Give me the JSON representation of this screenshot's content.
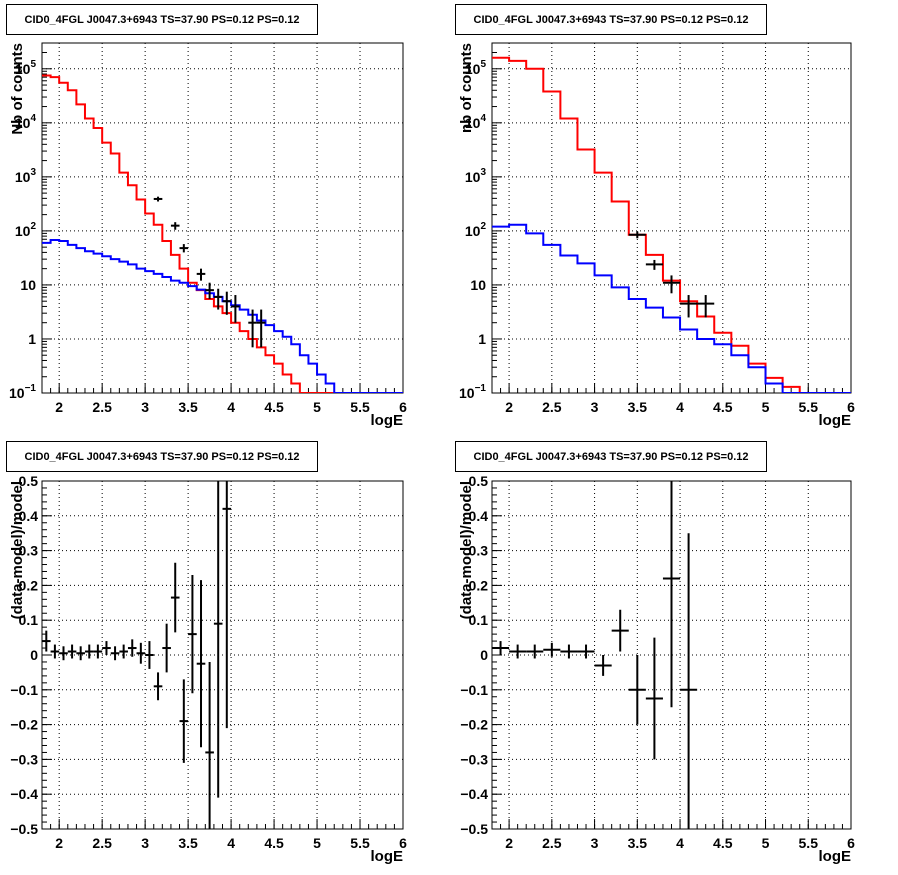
{
  "colors": {
    "red": "#ff0000",
    "blue": "#0000ff",
    "black": "#000000",
    "grid": "#000000"
  },
  "chart_data": [
    {
      "type": "line",
      "title": "CID0_4FGL J0047.3+6943 TS=37.90 PS=0.12 PS=0.12",
      "xlabel": "logE",
      "ylabel": "Nb of counts",
      "xlim": [
        1.8,
        6.0
      ],
      "ylim": [
        0.1,
        300000
      ],
      "yscale": "log",
      "xticks": [
        "2",
        "2.5",
        "3",
        "3.5",
        "4",
        "4.5",
        "5",
        "5.5",
        "6"
      ],
      "yticks": [
        "10^-1",
        "1",
        "10",
        "10^2",
        "10^3",
        "10^4",
        "10^5"
      ],
      "grid": true,
      "bin_edges": [
        1.8,
        1.9,
        2.0,
        2.1,
        2.2,
        2.3,
        2.4,
        2.5,
        2.6,
        2.7,
        2.8,
        2.9,
        3.0,
        3.1,
        3.2,
        3.3,
        3.4,
        3.5,
        3.6,
        3.7,
        3.8,
        3.9,
        4.0,
        4.1,
        4.2,
        4.3,
        4.4,
        4.5,
        4.6,
        4.7,
        4.8,
        4.9,
        5.0,
        5.1,
        5.2,
        5.3,
        5.4,
        5.5,
        5.6,
        5.7,
        5.8,
        5.9,
        6.0
      ],
      "series": [
        {
          "color": "red",
          "style": "step",
          "values": [
            75000,
            70000,
            55000,
            40000,
            22000,
            12000,
            8000,
            4300,
            2700,
            1200,
            700,
            380,
            210,
            130,
            65,
            36,
            20,
            11,
            8,
            5.5,
            4,
            3,
            2,
            1.4,
            1,
            0.7,
            0.5,
            0.35,
            0.22,
            0.15,
            0.1,
            0.1,
            0.1,
            0.1,
            0.1,
            0.1,
            0.1,
            0.1,
            0.1,
            0.1,
            0.1,
            0.1
          ]
        },
        {
          "color": "blue",
          "style": "step",
          "values": [
            60,
            68,
            65,
            55,
            48,
            42,
            38,
            34,
            30,
            27,
            24,
            20,
            18,
            16,
            14,
            12,
            11,
            9.5,
            8.2,
            7,
            6,
            5,
            4.2,
            3.5,
            2.8,
            2.2,
            1.8,
            1.4,
            1.1,
            0.8,
            0.5,
            0.35,
            0.22,
            0.15,
            0.1,
            0.1,
            0.1,
            0.1,
            0.1,
            0.1,
            0.1,
            0.1
          ]
        }
      ],
      "points": [
        {
          "x": 3.15,
          "xerr": 0.05,
          "y": 390,
          "ylo": 350,
          "yhi": 430
        },
        {
          "x": 3.35,
          "xerr": 0.05,
          "y": 125,
          "ylo": 105,
          "yhi": 145
        },
        {
          "x": 3.45,
          "xerr": 0.05,
          "y": 48,
          "ylo": 40,
          "yhi": 57
        },
        {
          "x": 3.65,
          "xerr": 0.05,
          "y": 16,
          "ylo": 12,
          "yhi": 20
        },
        {
          "x": 3.75,
          "xerr": 0.05,
          "y": 8,
          "ylo": 5.5,
          "yhi": 11
        },
        {
          "x": 3.85,
          "xerr": 0.05,
          "y": 6,
          "ylo": 3.5,
          "yhi": 8.5
        },
        {
          "x": 3.95,
          "xerr": 0.05,
          "y": 5,
          "ylo": 2.8,
          "yhi": 7.5
        },
        {
          "x": 4.05,
          "xerr": 0.05,
          "y": 4,
          "ylo": 2,
          "yhi": 6.5
        },
        {
          "x": 4.25,
          "xerr": 0.05,
          "y": 2,
          "ylo": 0.7,
          "yhi": 3.5
        },
        {
          "x": 4.35,
          "xerr": 0.05,
          "y": 2,
          "ylo": 0.7,
          "yhi": 3.5
        }
      ]
    },
    {
      "type": "line",
      "title": "CID0_4FGL J0047.3+6943 TS=37.90 PS=0.12 PS=0.12",
      "xlabel": "logE",
      "ylabel": "nb of counts",
      "xlim": [
        1.8,
        6.0
      ],
      "ylim": [
        0.1,
        300000
      ],
      "yscale": "log",
      "xticks": [
        "2",
        "2.5",
        "3",
        "3.5",
        "4",
        "4.5",
        "5",
        "5.5",
        "6"
      ],
      "yticks": [
        "10^-1",
        "1",
        "10",
        "10^2",
        "10^3",
        "10^4",
        "10^5"
      ],
      "grid": true,
      "bin_edges": [
        1.8,
        2.0,
        2.2,
        2.4,
        2.6,
        2.8,
        3.0,
        3.2,
        3.4,
        3.6,
        3.8,
        4.0,
        4.2,
        4.4,
        4.6,
        4.8,
        5.0,
        5.2,
        5.4,
        5.6,
        5.8,
        6.0
      ],
      "series": [
        {
          "color": "red",
          "style": "step",
          "values": [
            160000,
            140000,
            100000,
            38000,
            12000,
            3200,
            1200,
            350,
            85,
            36,
            12,
            5,
            2.6,
            1.3,
            0.75,
            0.35,
            0.19,
            0.13,
            0.1,
            0.1,
            0.1
          ]
        },
        {
          "color": "blue",
          "style": "step",
          "values": [
            120,
            130,
            90,
            55,
            35,
            25,
            15,
            9,
            5.5,
            3.8,
            2.5,
            1.5,
            1,
            0.8,
            0.5,
            0.3,
            0.15,
            0.1,
            0.1,
            0.1,
            0.1
          ]
        }
      ],
      "points": [
        {
          "x": 3.5,
          "xerr": 0.1,
          "y": 85,
          "ylo": 73,
          "yhi": 97
        },
        {
          "x": 3.7,
          "xerr": 0.1,
          "y": 24,
          "ylo": 19,
          "yhi": 29
        },
        {
          "x": 3.9,
          "xerr": 0.1,
          "y": 11,
          "ylo": 7,
          "yhi": 15
        },
        {
          "x": 4.1,
          "xerr": 0.1,
          "y": 4.5,
          "ylo": 2.5,
          "yhi": 6.5
        },
        {
          "x": 4.3,
          "xerr": 0.1,
          "y": 4.5,
          "ylo": 2.5,
          "yhi": 6.5
        }
      ]
    },
    {
      "type": "scatter",
      "title": "CID0_4FGL J0047.3+6943 TS=37.90 PS=0.12 PS=0.12",
      "xlabel": "logE",
      "ylabel": "(data-model)/model",
      "xlim": [
        1.8,
        6.0
      ],
      "ylim": [
        -0.5,
        0.5
      ],
      "xticks": [
        "2",
        "2.5",
        "3",
        "3.5",
        "4",
        "4.5",
        "5",
        "5.5",
        "6"
      ],
      "yticks": [
        "-0.5",
        "-0.4",
        "-0.3",
        "-0.2",
        "-0.1",
        "0",
        "0.1",
        "0.2",
        "0.3",
        "0.4",
        "0.5"
      ],
      "grid": true,
      "points": [
        {
          "x": 1.85,
          "xerr": 0.05,
          "y": 0.04,
          "err": 0.03
        },
        {
          "x": 1.95,
          "xerr": 0.05,
          "y": 0.01,
          "err": 0.02
        },
        {
          "x": 2.05,
          "xerr": 0.05,
          "y": 0.005,
          "err": 0.02
        },
        {
          "x": 2.15,
          "xerr": 0.05,
          "y": 0.01,
          "err": 0.02
        },
        {
          "x": 2.25,
          "xerr": 0.05,
          "y": 0.005,
          "err": 0.02
        },
        {
          "x": 2.35,
          "xerr": 0.05,
          "y": 0.01,
          "err": 0.02
        },
        {
          "x": 2.45,
          "xerr": 0.05,
          "y": 0.01,
          "err": 0.02
        },
        {
          "x": 2.55,
          "xerr": 0.05,
          "y": 0.02,
          "err": 0.02
        },
        {
          "x": 2.65,
          "xerr": 0.05,
          "y": 0.005,
          "err": 0.02
        },
        {
          "x": 2.75,
          "xerr": 0.05,
          "y": 0.01,
          "err": 0.02
        },
        {
          "x": 2.85,
          "xerr": 0.05,
          "y": 0.02,
          "err": 0.025
        },
        {
          "x": 2.95,
          "xerr": 0.05,
          "y": 0.005,
          "err": 0.03
        },
        {
          "x": 3.05,
          "xerr": 0.05,
          "y": 0.0,
          "err": 0.04
        },
        {
          "x": 3.15,
          "xerr": 0.05,
          "y": -0.09,
          "err": 0.04
        },
        {
          "x": 3.25,
          "xerr": 0.05,
          "y": 0.02,
          "err": 0.07
        },
        {
          "x": 3.35,
          "xerr": 0.05,
          "y": 0.165,
          "err": 0.1
        },
        {
          "x": 3.45,
          "xerr": 0.05,
          "y": -0.19,
          "err": 0.12
        },
        {
          "x": 3.55,
          "xerr": 0.05,
          "y": 0.06,
          "err": 0.17
        },
        {
          "x": 3.65,
          "xerr": 0.05,
          "y": -0.025,
          "err": 0.24
        },
        {
          "x": 3.75,
          "xerr": 0.05,
          "y": -0.28,
          "err": 0.26
        },
        {
          "x": 3.85,
          "xerr": 0.05,
          "y": 0.09,
          "err": 0.5
        },
        {
          "x": 3.95,
          "xerr": 0.05,
          "y": 0.42,
          "err": 0.63
        }
      ]
    },
    {
      "type": "scatter",
      "title": "CID0_4FGL J0047.3+6943 TS=37.90 PS=0.12 PS=0.12",
      "xlabel": "logE",
      "ylabel": "(data-model)/model",
      "xlim": [
        1.8,
        6.0
      ],
      "ylim": [
        -0.5,
        0.5
      ],
      "xticks": [
        "2",
        "2.5",
        "3",
        "3.5",
        "4",
        "4.5",
        "5",
        "5.5",
        "6"
      ],
      "yticks": [
        "-0.5",
        "-0.4",
        "-0.3",
        "-0.2",
        "-0.1",
        "0",
        "0.1",
        "0.2",
        "0.3",
        "0.4",
        "0.5"
      ],
      "grid": true,
      "points": [
        {
          "x": 1.9,
          "xerr": 0.1,
          "y": 0.02,
          "err": 0.02
        },
        {
          "x": 2.1,
          "xerr": 0.1,
          "y": 0.01,
          "err": 0.02
        },
        {
          "x": 2.3,
          "xerr": 0.1,
          "y": 0.01,
          "err": 0.02
        },
        {
          "x": 2.5,
          "xerr": 0.1,
          "y": 0.015,
          "err": 0.02
        },
        {
          "x": 2.7,
          "xerr": 0.1,
          "y": 0.01,
          "err": 0.02
        },
        {
          "x": 2.9,
          "xerr": 0.1,
          "y": 0.01,
          "err": 0.02
        },
        {
          "x": 3.1,
          "xerr": 0.1,
          "y": -0.03,
          "err": 0.03
        },
        {
          "x": 3.3,
          "xerr": 0.1,
          "y": 0.07,
          "err": 0.06
        },
        {
          "x": 3.5,
          "xerr": 0.1,
          "y": -0.1,
          "err": 0.1
        },
        {
          "x": 3.7,
          "xerr": 0.1,
          "y": -0.125,
          "err": 0.175
        },
        {
          "x": 3.9,
          "xerr": 0.1,
          "y": 0.22,
          "err": 0.37
        },
        {
          "x": 4.1,
          "xerr": 0.1,
          "y": -0.1,
          "err": 0.45
        }
      ]
    }
  ]
}
